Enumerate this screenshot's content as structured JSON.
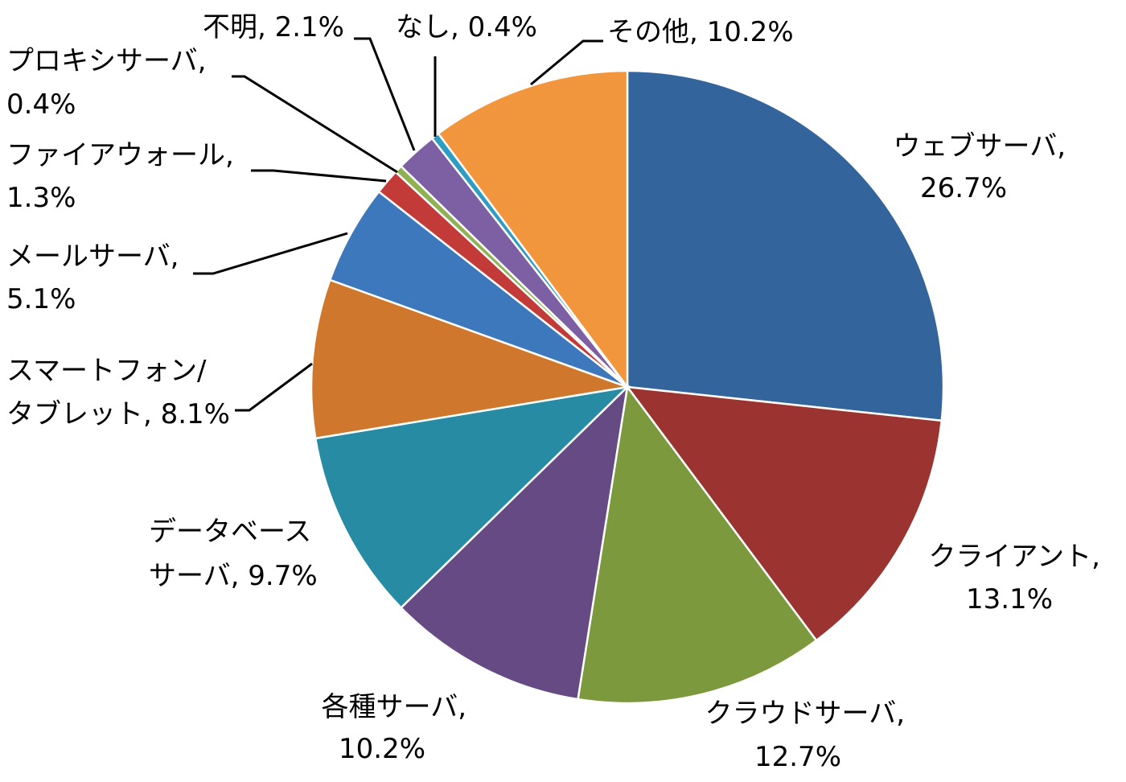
{
  "chart_data": {
    "type": "pie",
    "title": "",
    "start": "12 o'clock",
    "direction": "clockwise",
    "legend": "none",
    "slices": [
      {
        "label": "ウェブサーバ",
        "value": 26.7,
        "text": "26.7%",
        "color": "#33659C"
      },
      {
        "label": "クライアント",
        "value": 13.1,
        "text": "13.1%",
        "color": "#9B3431"
      },
      {
        "label": "クラウドサーバ",
        "value": 12.7,
        "text": "12.7%",
        "color": "#7C993E"
      },
      {
        "label": "各種サーバ",
        "value": 10.2,
        "text": "10.2%",
        "color": "#654A83"
      },
      {
        "label": "データベース サーバ",
        "value": 9.7,
        "text": "9.7%",
        "color": "#288BA4"
      },
      {
        "label": "スマートフォン/ タブレット",
        "value": 8.1,
        "text": "8.1%",
        "color": "#CF772C"
      },
      {
        "label": "メールサーバ",
        "value": 5.1,
        "text": "5.1%",
        "color": "#3E78BC"
      },
      {
        "label": "ファイアウォール",
        "value": 1.3,
        "text": "1.3%",
        "color": "#C33B38"
      },
      {
        "label": "プロキシサーバ",
        "value": 0.4,
        "text": "0.4%",
        "color": "#8EB153"
      },
      {
        "label": "不明",
        "value": 2.1,
        "text": "2.1%",
        "color": "#7D5FA3"
      },
      {
        "label": "なし",
        "value": 0.4,
        "text": "0.4%",
        "color": "#2E9CC3"
      },
      {
        "label": "その他",
        "value": 10.2,
        "text": "10.2%",
        "color": "#F2963D"
      }
    ]
  }
}
